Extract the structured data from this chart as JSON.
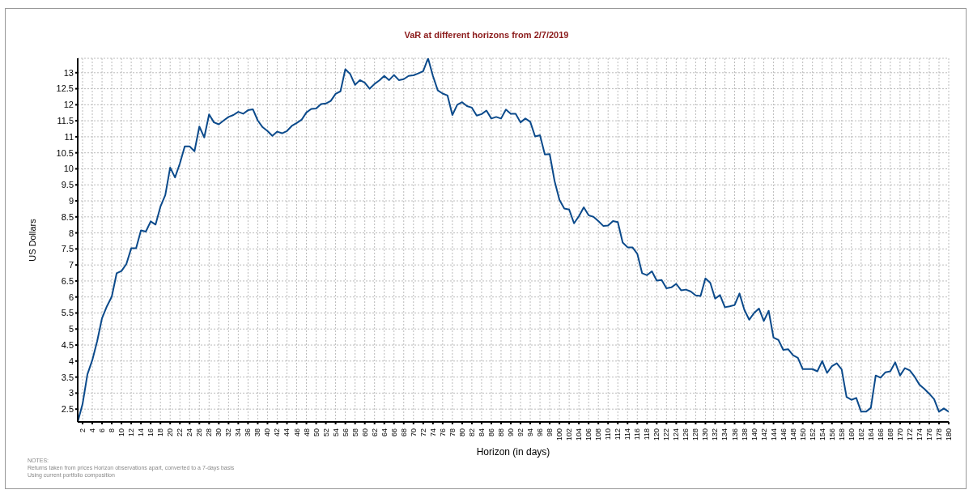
{
  "chart_data": {
    "type": "line",
    "title": "VaR at different horizons from 2/7/2019",
    "xlabel": "Horizon (in days)",
    "ylabel": "US Dollars",
    "annotations": [
      "NOTES:",
      "Returns taken from prices Horizon observations apart, converted to a 7-days basis",
      "Using current portfolio composition"
    ],
    "x": [
      1,
      2,
      3,
      4,
      5,
      6,
      7,
      8,
      9,
      10,
      11,
      12,
      13,
      14,
      15,
      16,
      17,
      18,
      19,
      20,
      21,
      22,
      23,
      24,
      25,
      26,
      27,
      28,
      29,
      30,
      31,
      32,
      33,
      34,
      35,
      36,
      37,
      38,
      39,
      40,
      41,
      42,
      43,
      44,
      45,
      46,
      47,
      48,
      49,
      50,
      51,
      52,
      53,
      54,
      55,
      56,
      57,
      58,
      59,
      60,
      61,
      62,
      63,
      64,
      65,
      66,
      67,
      68,
      69,
      70,
      71,
      72,
      73,
      74,
      75,
      76,
      77,
      78,
      79,
      80,
      81,
      82,
      83,
      84,
      85,
      86,
      87,
      88,
      89,
      90,
      91,
      92,
      93,
      94,
      95,
      96,
      97,
      98,
      99,
      100,
      101,
      102,
      103,
      104,
      105,
      106,
      107,
      108,
      109,
      110,
      111,
      112,
      113,
      114,
      115,
      116,
      117,
      118,
      119,
      120,
      121,
      122,
      123,
      124,
      125,
      126,
      127,
      128,
      129,
      130,
      131,
      132,
      133,
      134,
      135,
      136,
      137,
      138,
      139,
      140,
      141,
      142,
      143,
      144,
      145,
      146,
      147,
      148,
      149,
      150,
      151,
      152,
      153,
      154,
      155,
      156,
      157,
      158,
      159,
      160,
      161,
      162,
      163,
      164,
      165,
      166,
      167,
      168,
      169,
      170,
      171,
      172,
      173,
      174,
      175,
      176,
      177,
      178,
      179,
      180
    ],
    "series": [
      {
        "color": "#0b4a8b",
        "values": [
          2.1,
          2.66,
          3.59,
          4.03,
          4.62,
          5.34,
          5.71,
          6.01,
          6.74,
          6.81,
          7.03,
          7.52,
          7.52,
          8.08,
          8.04,
          8.36,
          8.26,
          8.82,
          9.18,
          10.04,
          9.73,
          10.17,
          10.7,
          10.7,
          10.55,
          11.32,
          10.98,
          11.7,
          11.45,
          11.39,
          11.51,
          11.62,
          11.68,
          11.78,
          11.72,
          11.83,
          11.86,
          11.51,
          11.3,
          11.18,
          11.03,
          11.16,
          11.11,
          11.18,
          11.34,
          11.43,
          11.53,
          11.76,
          11.87,
          11.88,
          12.02,
          12.04,
          12.12,
          12.34,
          12.42,
          13.11,
          12.96,
          12.62,
          12.77,
          12.69,
          12.5,
          12.65,
          12.76,
          12.9,
          12.77,
          12.93,
          12.77,
          12.8,
          12.9,
          12.92,
          12.98,
          13.05,
          13.45,
          12.9,
          12.45,
          12.35,
          12.29,
          11.68,
          12,
          12.08,
          11.96,
          11.91,
          11.66,
          11.71,
          11.82,
          11.57,
          11.62,
          11.57,
          11.85,
          11.72,
          11.72,
          11.45,
          11.57,
          11.47,
          11.01,
          11.05,
          10.45,
          10.46,
          9.62,
          9.03,
          8.76,
          8.73,
          8.3,
          8.52,
          8.8,
          8.55,
          8.5,
          8.37,
          8.22,
          8.23,
          8.37,
          8.34,
          7.7,
          7.55,
          7.55,
          7.35,
          6.74,
          6.68,
          6.8,
          6.51,
          6.53,
          6.27,
          6.3,
          6.41,
          6.21,
          6.23,
          6.17,
          6.05,
          6.03,
          6.58,
          6.44,
          5.95,
          6.06,
          5.68,
          5.71,
          5.75,
          6.11,
          5.6,
          5.29,
          5.5,
          5.64,
          5.25,
          5.57,
          4.73,
          4.66,
          4.35,
          4.37,
          4.18,
          4.1,
          3.75,
          3.75,
          3.75,
          3.68,
          4,
          3.63,
          3.84,
          3.93,
          3.74,
          2.88,
          2.79,
          2.85,
          2.42,
          2.42,
          2.54,
          3.55,
          3.48,
          3.65,
          3.68,
          3.96,
          3.55,
          3.78,
          3.71,
          3.51,
          3.26,
          3.13,
          2.98,
          2.81,
          2.42,
          2.52,
          2.42
        ]
      }
    ],
    "xlim": [
      1,
      180
    ],
    "xticks": [
      2,
      4,
      6,
      8,
      10,
      12,
      14,
      16,
      18,
      20,
      22,
      24,
      26,
      28,
      30,
      32,
      34,
      36,
      38,
      40,
      42,
      44,
      46,
      48,
      50,
      52,
      54,
      56,
      58,
      60,
      62,
      64,
      66,
      68,
      70,
      72,
      74,
      76,
      78,
      80,
      82,
      84,
      86,
      88,
      90,
      92,
      94,
      96,
      98,
      100,
      102,
      104,
      106,
      108,
      110,
      112,
      114,
      116,
      118,
      120,
      122,
      124,
      126,
      128,
      130,
      132,
      134,
      136,
      138,
      140,
      142,
      144,
      146,
      148,
      150,
      152,
      154,
      156,
      158,
      160,
      162,
      164,
      166,
      168,
      170,
      172,
      174,
      176,
      178,
      180
    ],
    "ylim": [
      2.1,
      13.45
    ],
    "yticks": [
      2.5,
      3,
      3.5,
      4,
      4.5,
      5,
      5.5,
      6,
      6.5,
      7,
      7.5,
      8,
      8.5,
      9,
      9.5,
      10,
      10.5,
      11,
      11.5,
      12,
      12.5,
      13
    ],
    "grid": true,
    "marker": "none",
    "line_style": "solid",
    "legend": false
  }
}
